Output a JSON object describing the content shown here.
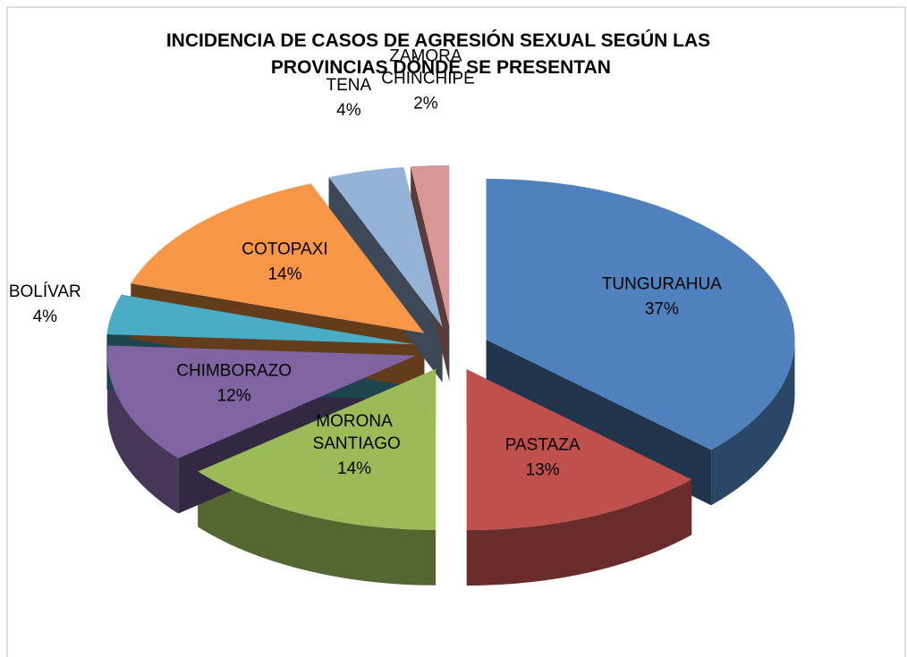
{
  "chart_data": {
    "type": "pie3d",
    "title": "INCIDENCIA DE CASOS DE AGRESIÓN SEXUAL SEGÚN LAS PROVINCIAS DÓNDE SE PRESENTAN",
    "categories": [
      "TUNGURAHUA",
      "PASTAZA",
      "MORONA SANTIAGO",
      "CHIMBORAZO",
      "BOLÍVAR",
      "COTOPAXI",
      "TENA",
      "ZAMORA CHINCHIPE"
    ],
    "values": [
      37,
      13,
      14,
      12,
      4,
      14,
      4,
      2
    ],
    "value_labels": [
      "37%",
      "13%",
      "14%",
      "12%",
      "4%",
      "14%",
      "4%",
      "2%"
    ],
    "colors": [
      "#4f81bd",
      "#c0504d",
      "#9bbb59",
      "#8064a2",
      "#4bacc6",
      "#f79646",
      "#95b3d7",
      "#d99694"
    ]
  }
}
